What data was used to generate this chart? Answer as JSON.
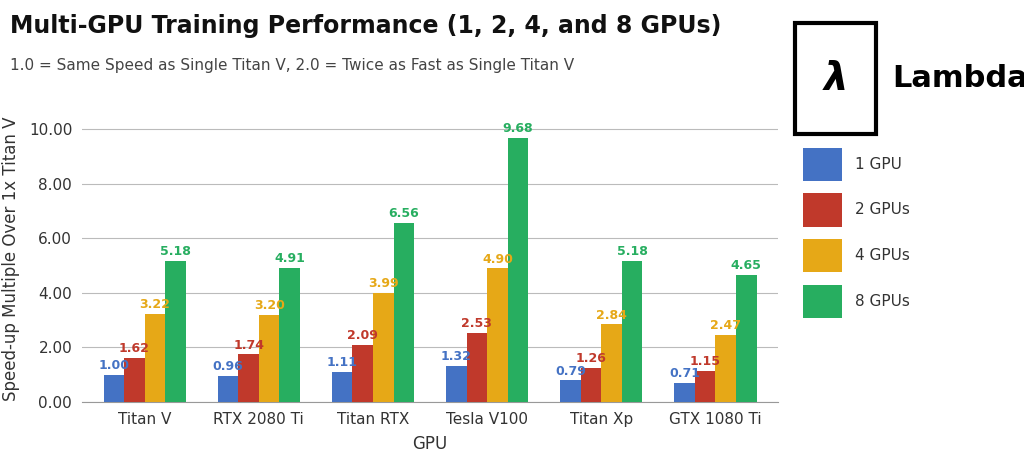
{
  "title": "Multi-GPU Training Performance (1, 2, 4, and 8 GPUs)",
  "subtitle": "1.0 = Same Speed as Single Titan V, 2.0 = Twice as Fast as Single Titan V",
  "xlabel": "GPU",
  "ylabel": "Speed-up Multiple Over 1x Titan V",
  "ylim": [
    0,
    10.5
  ],
  "yticks": [
    0.0,
    2.0,
    4.0,
    6.0,
    8.0,
    10.0
  ],
  "ytick_labels": [
    "0.00",
    "2.00",
    "4.00",
    "6.00",
    "8.00",
    "10.00"
  ],
  "categories": [
    "Titan V",
    "RTX 2080 Ti",
    "Titan RTX",
    "Tesla V100",
    "Titan Xp",
    "GTX 1080 Ti"
  ],
  "series": {
    "1 GPU": [
      1.0,
      0.96,
      1.11,
      1.32,
      0.79,
      0.71
    ],
    "2 GPUs": [
      1.62,
      1.74,
      2.09,
      2.53,
      1.26,
      1.15
    ],
    "4 GPUs": [
      3.22,
      3.2,
      3.99,
      4.9,
      2.84,
      2.47
    ],
    "8 GPUs": [
      5.18,
      4.91,
      6.56,
      9.68,
      5.18,
      4.65
    ]
  },
  "colors": {
    "1 GPU": "#4472C4",
    "2 GPUs": "#C0392B",
    "4 GPUs": "#E6A817",
    "8 GPUs": "#27AE60"
  },
  "bar_width": 0.18,
  "background_color": "#FFFFFF",
  "grid_color": "#BBBBBB",
  "title_fontsize": 17,
  "subtitle_fontsize": 11,
  "axis_label_fontsize": 12,
  "tick_fontsize": 11,
  "legend_fontsize": 11,
  "annotation_fontsize": 9,
  "logo_text": "λ",
  "logo_label": "Lambda"
}
